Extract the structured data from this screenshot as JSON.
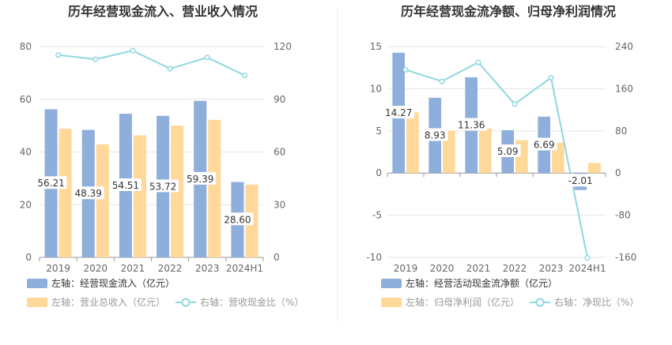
{
  "colors": {
    "bar_left": "#8eaedc",
    "bar_right": "#ffd89a",
    "line": "#8fd8e0",
    "label_bg": "#ffffff"
  },
  "chart_data": [
    {
      "type": "bar",
      "title": "历年经营现金流入、营业收入情况",
      "categories": [
        "2019",
        "2020",
        "2021",
        "2022",
        "2023",
        "2024H1"
      ],
      "left_axis": {
        "ylim": [
          0,
          80
        ],
        "ticks": [
          "0",
          "20",
          "40",
          "60",
          "80"
        ]
      },
      "right_axis": {
        "ylim": [
          0,
          120
        ],
        "ticks": [
          "0",
          "30",
          "60",
          "90",
          "120"
        ]
      },
      "series": [
        {
          "name": "左轴：经营现金流入（亿元）",
          "kind": "bar",
          "axis": "left",
          "values": [
            56.21,
            48.39,
            54.51,
            53.72,
            59.39,
            28.6
          ],
          "labels": [
            "56.21",
            "48.39",
            "54.51",
            "53.72",
            "59.39",
            "28.60"
          ]
        },
        {
          "name": "左轴：营业总收入（亿元）",
          "kind": "bar",
          "axis": "left",
          "values": [
            48.8,
            42.9,
            46.3,
            50.0,
            52.2,
            27.6
          ]
        },
        {
          "name": "右轴：营收现金比（%）",
          "kind": "line",
          "axis": "right",
          "values": [
            115.2,
            112.8,
            117.7,
            107.4,
            113.8,
            103.6
          ]
        }
      ]
    },
    {
      "type": "bar",
      "title": "历年经营现金流净额、归母净利润情况",
      "categories": [
        "2019",
        "2020",
        "2021",
        "2022",
        "2023",
        "2024H1"
      ],
      "left_axis": {
        "ylim": [
          -10,
          15
        ],
        "ticks": [
          "-10",
          "-5",
          "0",
          "5",
          "10",
          "15"
        ]
      },
      "right_axis": {
        "ylim": [
          -160,
          240
        ],
        "ticks": [
          "-160",
          "-80",
          "0",
          "80",
          "160",
          "240"
        ]
      },
      "series": [
        {
          "name": "左轴：经营活动现金流净额（亿元）",
          "kind": "bar",
          "axis": "left",
          "values": [
            14.27,
            8.93,
            11.36,
            5.09,
            6.69,
            -2.01
          ],
          "labels": [
            "14.27",
            "8.93",
            "11.36",
            "5.09",
            "6.69",
            "-2.01"
          ]
        },
        {
          "name": "左轴：归母净利润（亿元）",
          "kind": "bar",
          "axis": "left",
          "values": [
            7.2,
            5.0,
            5.3,
            3.9,
            3.6,
            1.2
          ]
        },
        {
          "name": "右轴：净现比（%）",
          "kind": "line",
          "axis": "right",
          "values": [
            196,
            174,
            210,
            131,
            181,
            -161
          ]
        }
      ]
    }
  ]
}
